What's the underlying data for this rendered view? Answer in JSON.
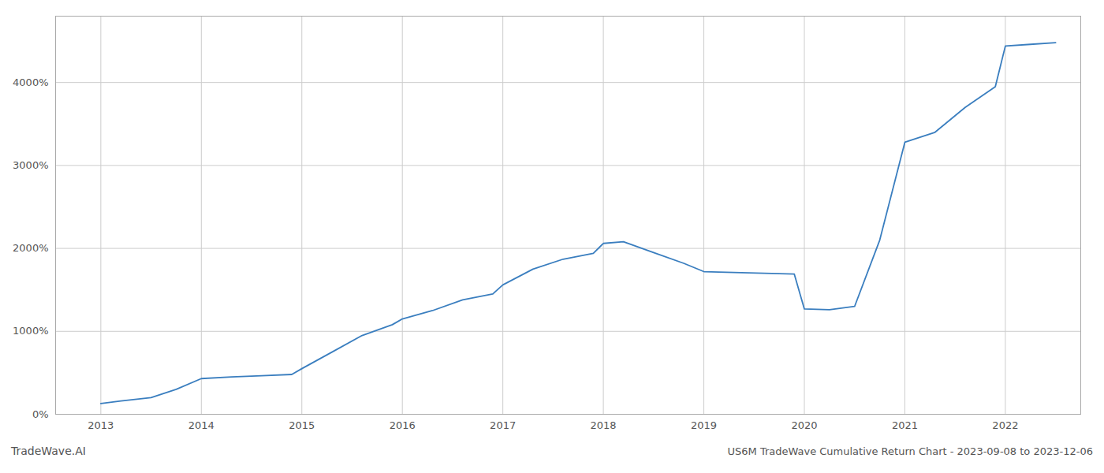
{
  "chart_data": {
    "type": "line",
    "title": "US6M TradeWave Cumulative Return Chart - 2023-09-08 to 2023-12-06",
    "annotations": [
      "TradeWave.AI"
    ],
    "x": [
      2013.0,
      2013.2,
      2013.5,
      2013.75,
      2014.0,
      2014.3,
      2014.6,
      2014.9,
      2015.0,
      2015.3,
      2015.6,
      2015.9,
      2016.0,
      2016.3,
      2016.6,
      2016.9,
      2017.0,
      2017.3,
      2017.6,
      2017.9,
      2018.0,
      2018.2,
      2018.5,
      2018.8,
      2019.0,
      2019.3,
      2019.6,
      2019.9,
      2020.0,
      2020.25,
      2020.5,
      2020.75,
      2021.0,
      2021.3,
      2021.6,
      2021.9,
      2022.0,
      2022.25,
      2022.5
    ],
    "values": [
      130,
      160,
      200,
      300,
      430,
      450,
      465,
      480,
      550,
      750,
      950,
      1080,
      1150,
      1250,
      1380,
      1450,
      1560,
      1750,
      1870,
      1940,
      2060,
      2080,
      1950,
      1820,
      1720,
      1710,
      1700,
      1690,
      1270,
      1260,
      1300,
      2100,
      3280,
      3400,
      3700,
      3950,
      4440,
      4460,
      4480
    ],
    "color": "#3a7ebf",
    "xlim": [
      2012.55,
      2022.75
    ],
    "xticks": [
      2013,
      2014,
      2015,
      2016,
      2017,
      2018,
      2019,
      2020,
      2021,
      2022
    ],
    "ylim": [
      0,
      4800
    ],
    "yticks": [
      {
        "value": 0,
        "label": "0%"
      },
      {
        "value": 1000,
        "label": "1000%"
      },
      {
        "value": 2000,
        "label": "2000%"
      },
      {
        "value": 3000,
        "label": "3000%"
      },
      {
        "value": 4000,
        "label": "4000%"
      }
    ],
    "grid": true
  }
}
